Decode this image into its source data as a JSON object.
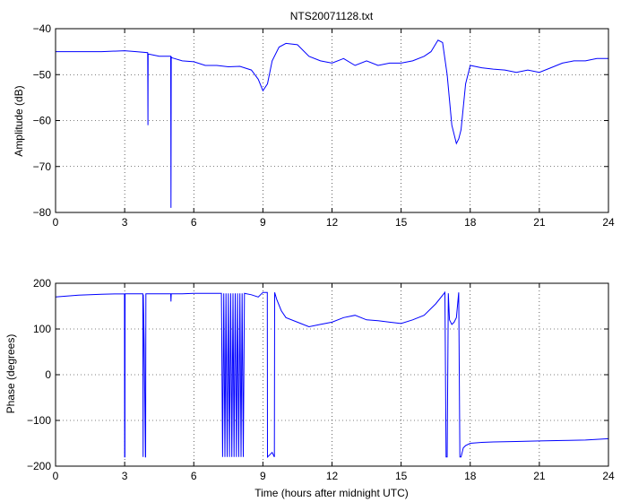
{
  "chart_data": [
    {
      "type": "line",
      "title": "NTS20071128.txt",
      "xlabel": "",
      "ylabel": "Amplitude (dB)",
      "xlim": [
        0,
        24
      ],
      "ylim": [
        -80,
        -40
      ],
      "xticks": [
        "0",
        "3",
        "6",
        "9",
        "12",
        "15",
        "18",
        "21",
        "24"
      ],
      "yticks": [
        "-40",
        "-50",
        "-60",
        "-70",
        "-80"
      ],
      "grid": true,
      "line_color": "#0000ff",
      "series": [
        {
          "x": [
            0,
            1,
            2,
            3,
            3.5,
            4.0,
            4.01,
            4.02,
            4.03,
            4.5,
            5.0,
            5.01,
            5.02,
            5.03,
            5.5,
            6.0,
            6.5,
            7.0,
            7.5,
            8.0,
            8.5,
            8.8,
            9.0,
            9.2,
            9.4,
            9.7,
            10.0,
            10.5,
            11.0,
            11.5,
            12.0,
            12.5,
            13.0,
            13.5,
            14.0,
            14.5,
            15.0,
            15.5,
            16.0,
            16.3,
            16.6,
            16.8,
            17.0,
            17.2,
            17.4,
            17.5,
            17.6,
            17.8,
            18.0,
            18.5,
            19.0,
            19.5,
            20.0,
            20.5,
            21.0,
            21.5,
            22.0,
            22.5,
            23.0,
            23.5,
            24.0
          ],
          "y": [
            -45,
            -45,
            -45,
            -44.8,
            -45,
            -45.2,
            -61,
            -45.5,
            -45.5,
            -46,
            -46,
            -79,
            -46,
            -46.3,
            -47,
            -47.2,
            -48,
            -48,
            -48.3,
            -48.2,
            -49,
            -51,
            -53.5,
            -52,
            -47,
            -44,
            -43.2,
            -43.5,
            -46,
            -47,
            -47.5,
            -46.5,
            -48,
            -47,
            -48,
            -47.5,
            -47.5,
            -47,
            -46,
            -45,
            -42.5,
            -43,
            -50,
            -61,
            -65,
            -64,
            -62,
            -52,
            -48,
            -48.5,
            -48.8,
            -49,
            -49.5,
            -49,
            -49.5,
            -48.5,
            -47.5,
            -47,
            -47,
            -46.5,
            -46.5
          ]
        }
      ]
    },
    {
      "type": "line",
      "title": "",
      "xlabel": "Time (hours after midnight UTC)",
      "ylabel": "Phase (degrees)",
      "xlim": [
        0,
        24
      ],
      "ylim": [
        -200,
        200
      ],
      "xticks": [
        "0",
        "3",
        "6",
        "9",
        "12",
        "15",
        "18",
        "21",
        "24"
      ],
      "yticks": [
        "200",
        "100",
        "0",
        "-100",
        "-200"
      ],
      "grid": true,
      "line_color": "#0000ff",
      "series": [
        {
          "x": [
            0,
            1,
            2,
            2.99,
            3.0,
            3.01,
            3.02,
            3.5,
            3.79,
            3.8,
            3.81,
            3.85,
            3.9,
            3.91,
            3.92,
            4.5,
            5.0,
            5.01,
            5.02,
            5.5,
            6.0,
            6.5,
            7.0,
            7.2,
            7.25,
            7.3,
            7.35,
            7.4,
            7.45,
            7.5,
            7.55,
            7.6,
            7.65,
            7.7,
            7.75,
            7.8,
            7.85,
            7.9,
            7.95,
            8.0,
            8.05,
            8.1,
            8.15,
            8.2,
            8.5,
            8.8,
            9.0,
            9.19,
            9.2,
            9.3,
            9.4,
            9.5,
            9.51,
            9.6,
            9.8,
            10.0,
            10.5,
            11.0,
            11.5,
            12.0,
            12.5,
            13.0,
            13.5,
            14.0,
            14.5,
            15.0,
            15.5,
            16.0,
            16.5,
            16.9,
            16.95,
            17.0,
            17.05,
            17.1,
            17.2,
            17.3,
            17.4,
            17.5,
            17.55,
            17.6,
            17.7,
            17.8,
            18.0,
            18.5,
            19.0,
            20.0,
            21.0,
            22.0,
            23.0,
            24.0
          ],
          "y": [
            170,
            174,
            176,
            177,
            -180,
            -180,
            177,
            177,
            177,
            -180,
            175,
            60,
            -180,
            -180,
            177,
            177,
            177,
            160,
            177,
            177,
            178,
            178,
            178,
            178,
            -180,
            178,
            -180,
            178,
            -180,
            178,
            -180,
            178,
            -180,
            178,
            -180,
            178,
            -180,
            178,
            -180,
            178,
            -180,
            178,
            -180,
            178,
            175,
            170,
            180,
            180,
            -180,
            -175,
            -170,
            -180,
            180,
            165,
            140,
            125,
            115,
            105,
            110,
            115,
            125,
            130,
            120,
            118,
            115,
            112,
            120,
            130,
            155,
            180,
            -180,
            -180,
            178,
            120,
            110,
            115,
            125,
            180,
            -180,
            -180,
            -160,
            -155,
            -150,
            -148,
            -147,
            -146,
            -145,
            -144,
            -143,
            -140
          ]
        }
      ]
    }
  ]
}
